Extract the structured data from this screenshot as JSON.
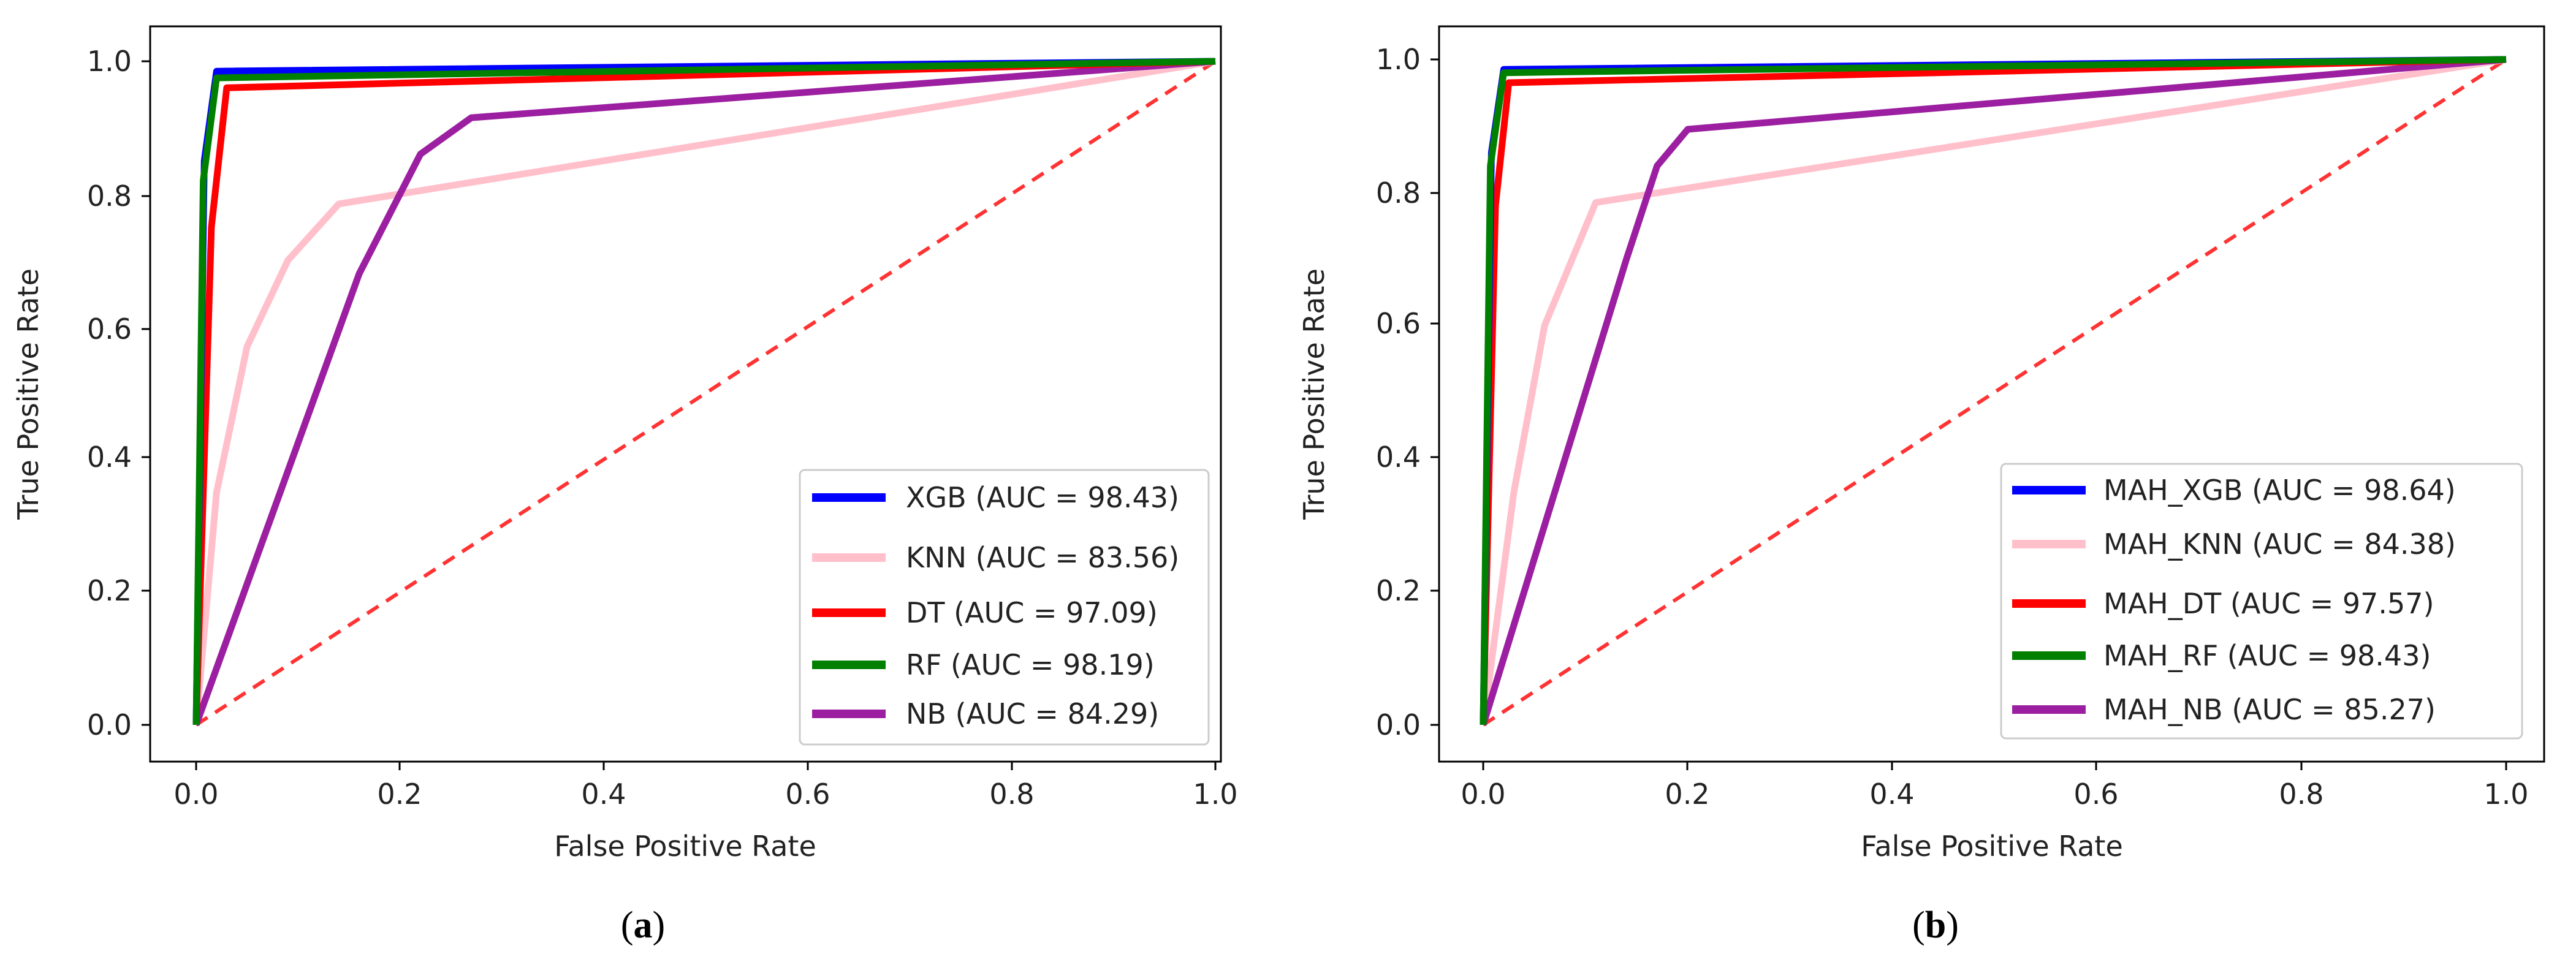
{
  "chart_data": [
    {
      "panel": "a",
      "caption": "(a)",
      "caption_letter": "a",
      "type": "line",
      "title": "",
      "xlabel": "False Positive Rate",
      "ylabel": "True Positive Rate",
      "xlim": [
        -0.05,
        1.05
      ],
      "ylim": [
        -0.05,
        1.05
      ],
      "xticks": [
        0.0,
        0.2,
        0.4,
        0.6,
        0.8,
        1.0
      ],
      "yticks": [
        0.0,
        0.2,
        0.4,
        0.6,
        0.8,
        1.0
      ],
      "xtick_labels": [
        "0.0",
        "0.2",
        "0.4",
        "0.6",
        "0.8",
        "1.0"
      ],
      "ytick_labels": [
        "0.0",
        "0.2",
        "0.4",
        "0.6",
        "0.8",
        "1.0"
      ],
      "grid": false,
      "legend_position": "lower-right",
      "series": [
        {
          "name": "XGB (AUC = 98.43)",
          "color": "#0000ff",
          "x": [
            0,
            0.008,
            0.02,
            1.0
          ],
          "y": [
            0,
            0.85,
            0.985,
            1.0
          ]
        },
        {
          "name": "KNN (AUC = 83.56)",
          "color": "#ffc0cb",
          "x": [
            0,
            0.02,
            0.05,
            0.09,
            0.14,
            1.0
          ],
          "y": [
            0,
            0.35,
            0.57,
            0.7,
            0.785,
            1.0
          ]
        },
        {
          "name": "DT (AUC = 97.09)",
          "color": "#ff0000",
          "x": [
            0,
            0.015,
            0.03,
            1.0
          ],
          "y": [
            0,
            0.75,
            0.96,
            1.0
          ]
        },
        {
          "name": "RF (AUC = 98.19)",
          "color": "#008000",
          "x": [
            0,
            0.007,
            0.02,
            1.0
          ],
          "y": [
            0,
            0.82,
            0.975,
            1.0
          ]
        },
        {
          "name": "NB (AUC = 84.29)",
          "color": "#9b1fa0",
          "x": [
            0,
            0.16,
            0.22,
            0.27,
            1.0
          ],
          "y": [
            0,
            0.68,
            0.86,
            0.915,
            1.0
          ]
        }
      ],
      "reference_line": {
        "x": [
          0,
          1
        ],
        "y": [
          0,
          1
        ],
        "color": "#ff3333",
        "style": "dashed"
      }
    },
    {
      "panel": "b",
      "caption": "(b)",
      "caption_letter": "b",
      "type": "line",
      "title": "",
      "xlabel": "False Positive Rate",
      "ylabel": "True Positive Rate",
      "xlim": [
        -0.05,
        1.05
      ],
      "ylim": [
        -0.05,
        1.05
      ],
      "xticks": [
        0.0,
        0.2,
        0.4,
        0.6,
        0.8,
        1.0
      ],
      "yticks": [
        0.0,
        0.2,
        0.4,
        0.6,
        0.8,
        1.0
      ],
      "xtick_labels": [
        "0.0",
        "0.2",
        "0.4",
        "0.6",
        "0.8",
        "1.0"
      ],
      "ytick_labels": [
        "0.0",
        "0.2",
        "0.4",
        "0.6",
        "0.8",
        "1.0"
      ],
      "grid": false,
      "legend_position": "lower-right",
      "series": [
        {
          "name": "MAH_XGB (AUC = 98.64)",
          "color": "#0000ff",
          "x": [
            0,
            0.008,
            0.02,
            1.0
          ],
          "y": [
            0,
            0.86,
            0.985,
            1.0
          ]
        },
        {
          "name": "MAH_KNN (AUC = 84.38)",
          "color": "#ffc0cb",
          "x": [
            0,
            0.03,
            0.06,
            0.11,
            1.0
          ],
          "y": [
            0,
            0.35,
            0.6,
            0.785,
            1.0
          ]
        },
        {
          "name": "MAH_DT (AUC = 97.57)",
          "color": "#ff0000",
          "x": [
            0,
            0.012,
            0.025,
            1.0
          ],
          "y": [
            0,
            0.78,
            0.965,
            1.0
          ]
        },
        {
          "name": "MAH_RF (AUC = 98.43)",
          "color": "#008000",
          "x": [
            0,
            0.007,
            0.02,
            1.0
          ],
          "y": [
            0,
            0.84,
            0.98,
            1.0
          ]
        },
        {
          "name": "MAH_NB (AUC = 85.27)",
          "color": "#9b1fa0",
          "x": [
            0,
            0.14,
            0.17,
            0.2,
            1.0
          ],
          "y": [
            0,
            0.7,
            0.84,
            0.895,
            1.0
          ]
        }
      ],
      "reference_line": {
        "x": [
          0,
          1
        ],
        "y": [
          0,
          1
        ],
        "color": "#ff3333",
        "style": "dashed"
      }
    }
  ]
}
